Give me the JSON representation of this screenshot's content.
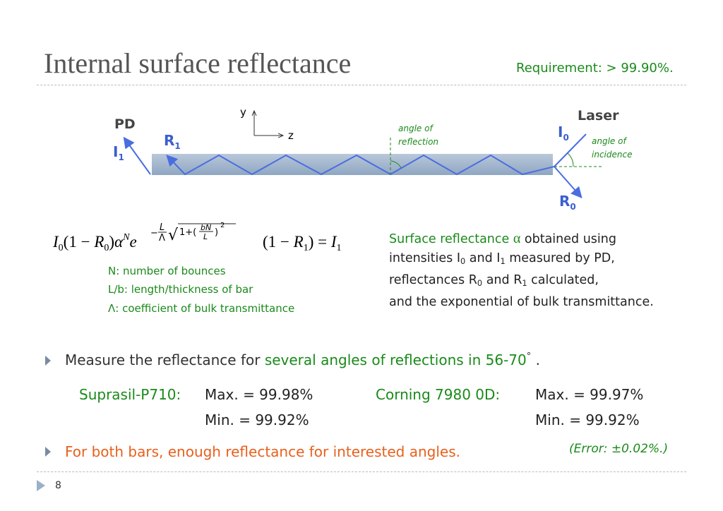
{
  "title": "Internal surface reflectance",
  "requirement": "Requirement: > 99.90%.",
  "diagram": {
    "pd": "PD",
    "i1": [
      "I",
      "1"
    ],
    "r1": [
      "R",
      "1"
    ],
    "y_axis": "y",
    "z_axis": "z",
    "angle_of_reflection": [
      "angle of",
      "reflection"
    ],
    "laser": "Laser",
    "i0": [
      "I",
      "0"
    ],
    "angle_of_incidence": [
      "angle of",
      "incidence"
    ],
    "r0": [
      "R",
      "0"
    ]
  },
  "formula": {
    "left": [
      "I",
      "0",
      "(1 − ",
      "R",
      "0",
      ")",
      "α",
      "N",
      "e"
    ],
    "exponent": [
      "−",
      "L",
      "Λ",
      "√",
      "1+(",
      "bN",
      "L",
      ")",
      "2"
    ],
    "right": [
      "(1 − ",
      "R",
      "1",
      ") = ",
      "I",
      "1"
    ]
  },
  "notes": [
    "N: number of bounces",
    "L/b: length/thickness of bar",
    "Λ: coefficient of bulk transmittance"
  ],
  "description": [
    [
      "Surface reflectance ",
      "α",
      " obtained using"
    ],
    [
      "intensities I",
      "0",
      " and I",
      "1",
      " measured by PD,"
    ],
    [
      "reflectances R",
      "0",
      " and R",
      "1",
      " calculated,"
    ],
    [
      "and the exponential of bulk transmittance."
    ]
  ],
  "bullets": [
    [
      "Measure the reflectance for ",
      "several angles of reflections in 56-70",
      "°",
      " ."
    ],
    [
      "For both bars, enough reflectance for interested angles."
    ]
  ],
  "results": [
    {
      "name": "Suprasil-P710:",
      "max": "Max. = 99.98%",
      "min": "Min. = 99.92%"
    },
    {
      "name": "Corning 7980 0D:",
      "max": "Max. = 99.97%",
      "min": "Min. = 99.92%"
    }
  ],
  "error": "(Error: ±0.02%.)",
  "page_number": "8"
}
